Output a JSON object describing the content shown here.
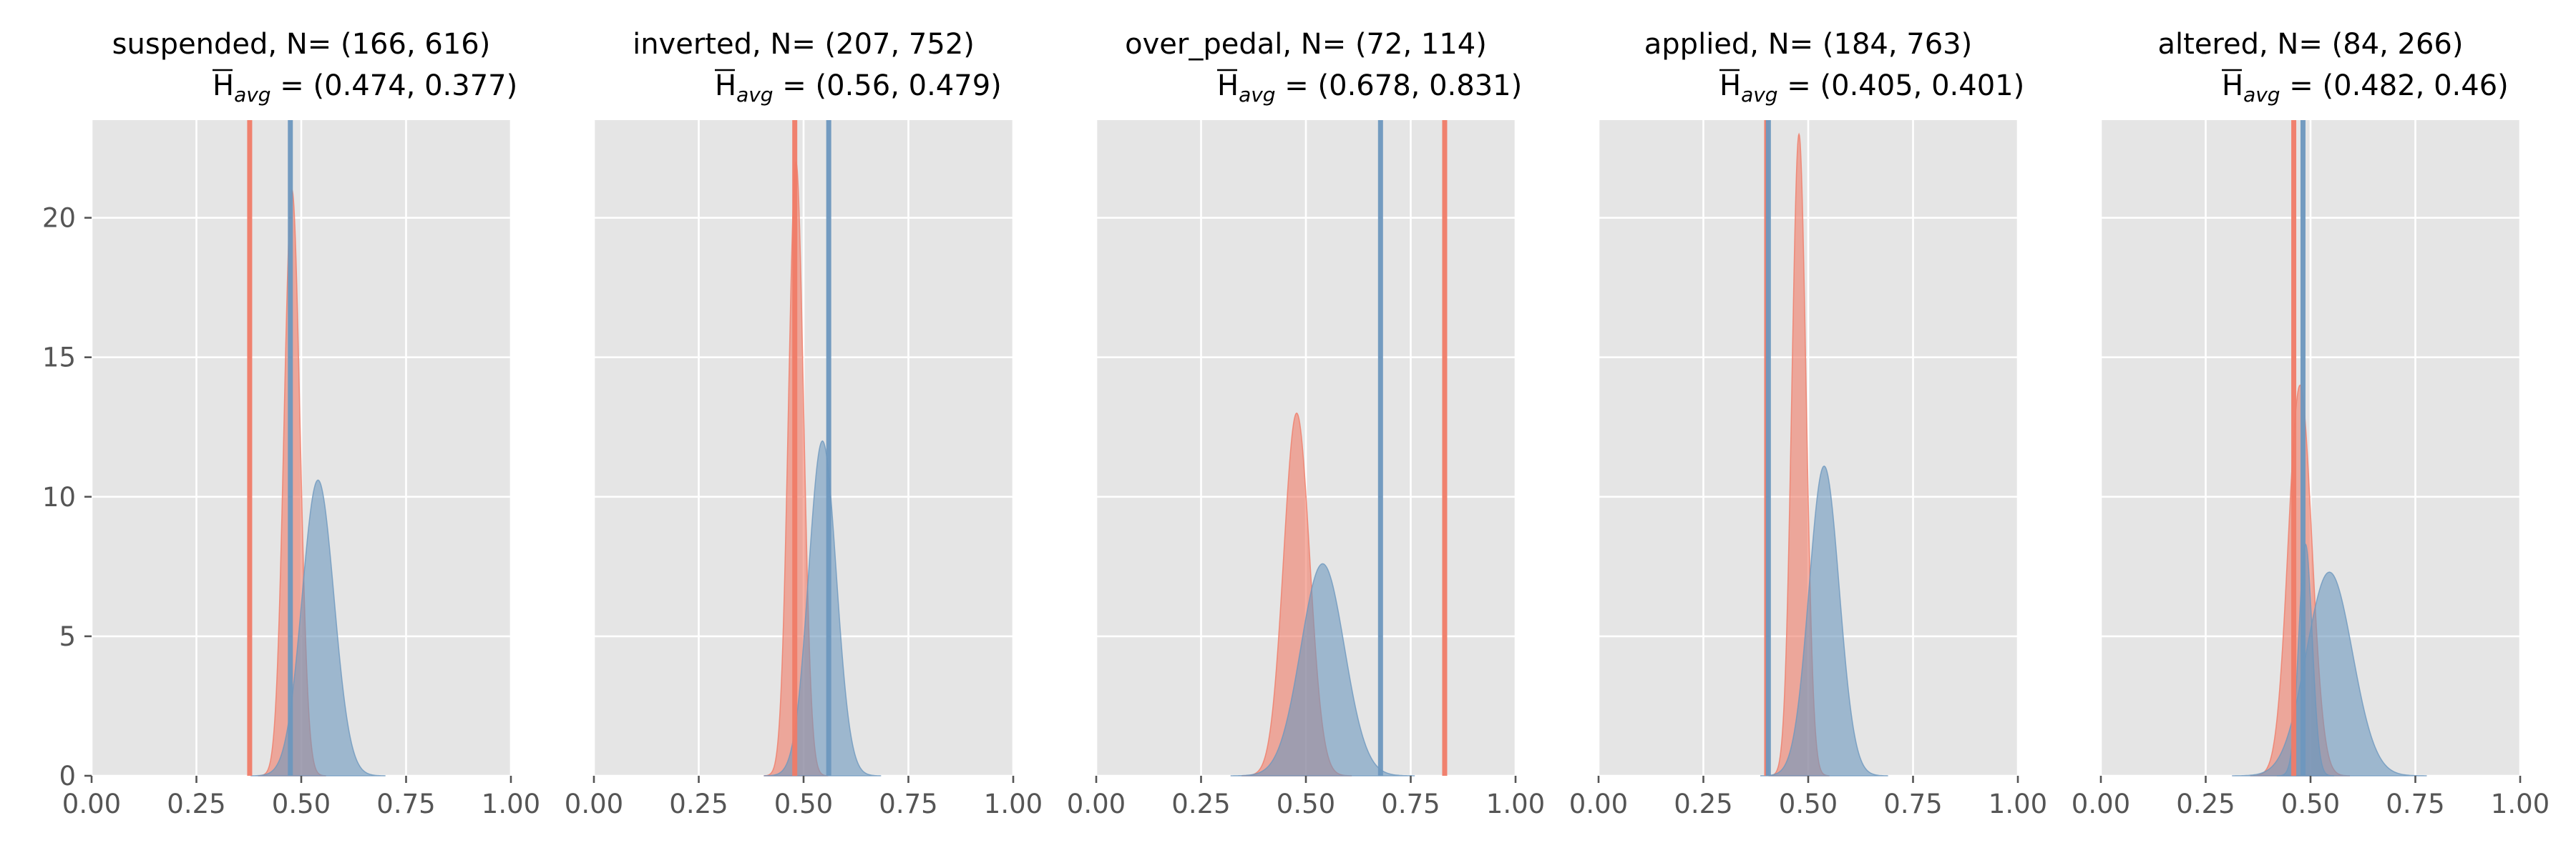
{
  "chart_data": {
    "type": "area",
    "layout": "5 small-multiple density panels in one row, shared y axis",
    "x_range": [
      0,
      1
    ],
    "y_range": [
      0,
      23.5
    ],
    "x_ticks": [
      0.0,
      0.25,
      0.5,
      0.75,
      1.0
    ],
    "x_tick_labels": [
      "0.00",
      "0.25",
      "0.50",
      "0.75",
      "1.00"
    ],
    "y_ticks": [
      0,
      5,
      10,
      15,
      20
    ],
    "y_tick_labels": [
      "0",
      "5",
      "10",
      "15",
      "20"
    ],
    "grid": true,
    "background": "#e5e5e5",
    "series_colors": {
      "red": "#f07b67",
      "blue": "#6d97be"
    },
    "panels": [
      {
        "name": "suspended",
        "title": "suspended, N= (166, 616)",
        "havg_values": "(0.474, 0.377)",
        "vlines": {
          "blue": 0.474,
          "red": 0.377
        },
        "densities": {
          "red": [
            {
              "mean": 0.478,
              "sd": 0.019,
              "peak": 21.0
            }
          ],
          "blue": [
            {
              "mean": 0.54,
              "sd": 0.038,
              "peak": 10.6
            }
          ]
        }
      },
      {
        "name": "inverted",
        "title": "inverted, N= (207, 752)",
        "havg_values": "(0.56, 0.479)",
        "vlines": {
          "blue": 0.56,
          "red": 0.479
        },
        "densities": {
          "red": [
            {
              "mean": 0.482,
              "sd": 0.018,
              "peak": 22.0
            }
          ],
          "blue": [
            {
              "mean": 0.545,
              "sd": 0.033,
              "peak": 12.0
            }
          ]
        }
      },
      {
        "name": "over_pedal",
        "title": "over_pedal, N= (72, 114)",
        "havg_values": "(0.678, 0.831)",
        "vlines": {
          "blue": 0.678,
          "red": 0.831
        },
        "densities": {
          "red": [
            {
              "mean": 0.478,
              "sd": 0.031,
              "peak": 13.0
            }
          ],
          "blue": [
            {
              "mean": 0.54,
              "sd": 0.052,
              "peak": 7.6
            }
          ]
        }
      },
      {
        "name": "applied",
        "title": "applied, N= (184, 763)",
        "havg_values": "(0.405, 0.401)",
        "vlines": {
          "blue": 0.405,
          "red": 0.401
        },
        "densities": {
          "red": [
            {
              "mean": 0.478,
              "sd": 0.017,
              "peak": 23.0
            }
          ],
          "blue": [
            {
              "mean": 0.538,
              "sd": 0.036,
              "peak": 11.1
            }
          ]
        }
      },
      {
        "name": "altered",
        "title": "altered, N= (84, 266)",
        "havg_values": "(0.482, 0.46)",
        "vlines": {
          "blue": 0.482,
          "red": 0.46
        },
        "densities": {
          "red": [
            {
              "mean": 0.475,
              "sd": 0.028,
              "peak": 14.0
            }
          ],
          "blue": [
            {
              "mean": 0.488,
              "sd": 0.016,
              "peak": 8.3
            },
            {
              "mean": 0.545,
              "sd": 0.055,
              "peak": 7.3
            }
          ]
        }
      }
    ]
  }
}
